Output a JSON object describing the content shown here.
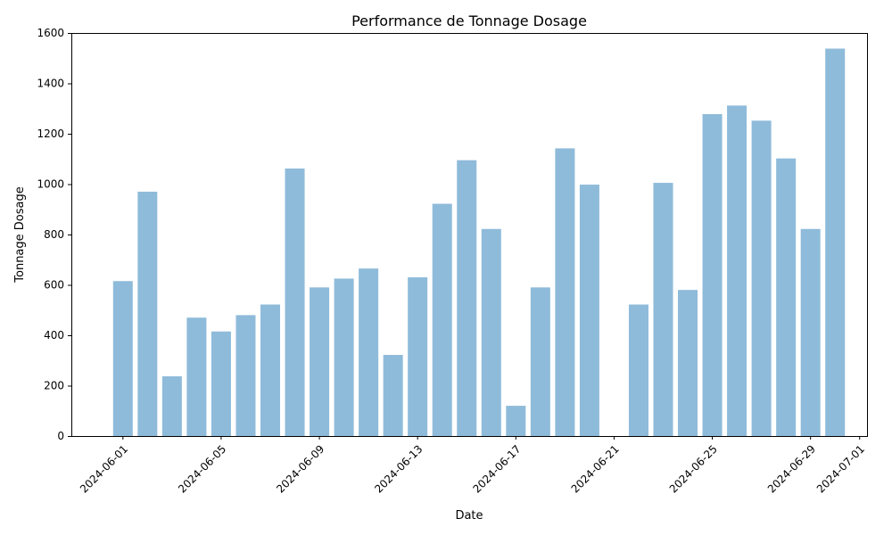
{
  "chart_data": {
    "type": "bar",
    "title": "Performance de Tonnage Dosage",
    "xlabel": "Date",
    "ylabel": "Tonnage Dosage",
    "ylim": [
      0,
      1600
    ],
    "yticks": [
      0,
      200,
      400,
      600,
      800,
      1000,
      1200,
      1400,
      1600
    ],
    "xlim": [
      "2024-05-30",
      "2024-07-01"
    ],
    "xticks": [
      "2024-06-01",
      "2024-06-05",
      "2024-06-09",
      "2024-06-13",
      "2024-06-17",
      "2024-06-21",
      "2024-06-25",
      "2024-06-29",
      "2024-07-01"
    ],
    "bar_color": "#8fbbda",
    "grid": false,
    "legend": "none",
    "x": [
      "2024-06-01",
      "2024-06-02",
      "2024-06-03",
      "2024-06-04",
      "2024-06-05",
      "2024-06-06",
      "2024-06-07",
      "2024-06-08",
      "2024-06-09",
      "2024-06-10",
      "2024-06-11",
      "2024-06-12",
      "2024-06-13",
      "2024-06-14",
      "2024-06-15",
      "2024-06-16",
      "2024-06-17",
      "2024-06-18",
      "2024-06-19",
      "2024-06-20",
      "2024-06-21",
      "2024-06-22",
      "2024-06-23",
      "2024-06-24",
      "2024-06-25",
      "2024-06-26",
      "2024-06-27",
      "2024-06-28",
      "2024-06-29",
      "2024-06-30"
    ],
    "values": [
      615,
      970,
      237,
      470,
      415,
      480,
      522,
      1062,
      590,
      625,
      665,
      322,
      630,
      922,
      1095,
      822,
      120,
      590,
      1142,
      998,
      0,
      522,
      1005,
      580,
      1278,
      1312,
      1252,
      1102,
      822,
      1538
    ]
  }
}
